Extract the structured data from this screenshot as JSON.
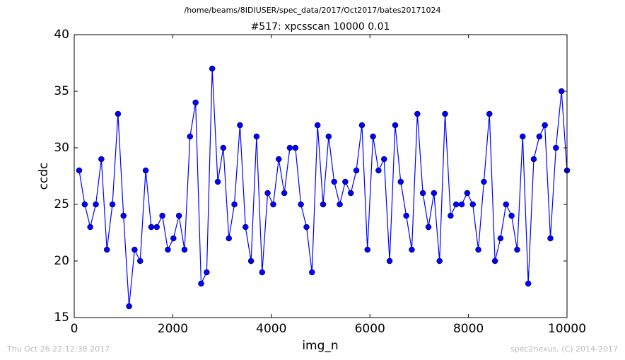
{
  "chart_data": {
    "type": "line",
    "suptitle": "/home/beams/8IDIUSER/spec_data/2017/Oct2017/bates20171024",
    "title": "#517: xpcsscan 10000 0.01",
    "xlabel": "img_n",
    "ylabel": "ccdc",
    "x": [
      100,
      213,
      325,
      438,
      550,
      663,
      775,
      888,
      1000,
      1113,
      1225,
      1338,
      1450,
      1563,
      1675,
      1788,
      1900,
      2013,
      2125,
      2238,
      2350,
      2463,
      2575,
      2688,
      2800,
      2913,
      3025,
      3138,
      3250,
      3363,
      3475,
      3588,
      3700,
      3813,
      3925,
      4038,
      4150,
      4263,
      4375,
      4488,
      4600,
      4713,
      4825,
      4938,
      5050,
      5163,
      5275,
      5388,
      5500,
      5613,
      5725,
      5838,
      5950,
      6063,
      6175,
      6288,
      6400,
      6513,
      6625,
      6738,
      6850,
      6963,
      7075,
      7188,
      7300,
      7413,
      7525,
      7638,
      7750,
      7863,
      7975,
      8088,
      8200,
      8313,
      8425,
      8538,
      8650,
      8763,
      8875,
      8988,
      9100,
      9213,
      9325,
      9438,
      9550,
      9663,
      9775,
      9888,
      10000
    ],
    "series": [
      {
        "name": "ccdc",
        "color": "#0000ff",
        "values": [
          28,
          25,
          23,
          25,
          29,
          21,
          25,
          33,
          24,
          16,
          21,
          20,
          28,
          23,
          23,
          24,
          21,
          22,
          24,
          21,
          31,
          34,
          18,
          19,
          37,
          27,
          30,
          22,
          25,
          32,
          23,
          20,
          31,
          19,
          26,
          25,
          29,
          26,
          30,
          30,
          25,
          23,
          19,
          32,
          25,
          31,
          27,
          25,
          27,
          26,
          28,
          32,
          21,
          31,
          28,
          29,
          20,
          32,
          27,
          24,
          21,
          33,
          26,
          23,
          26,
          20,
          33,
          24,
          25,
          25,
          26,
          25,
          21,
          27,
          33,
          20,
          22,
          25,
          24,
          21,
          31,
          18,
          29,
          31,
          32,
          22,
          30,
          35,
          28
        ]
      }
    ],
    "xlim": [
      0,
      10000
    ],
    "xticks": [
      0,
      2000,
      4000,
      6000,
      8000,
      10000
    ],
    "ylim": [
      15,
      40
    ],
    "yticks": [
      15,
      20,
      25,
      30,
      35,
      40
    ],
    "grid": false
  },
  "footer": {
    "left": "Thu Oct 26 22:12:38 2017",
    "right": "spec2nexus, (C) 2014-2017"
  }
}
